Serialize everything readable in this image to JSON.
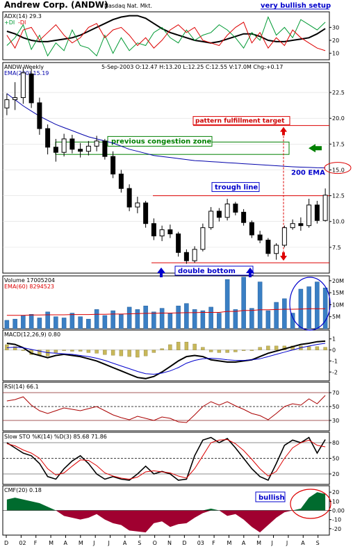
{
  "title": "Andrew Corp. (ANDW)",
  "exchange": "Nasdaq Nat. Mkt.",
  "setup_label": "very bullish setup",
  "colors": {
    "ink": "#000000",
    "grid": "#999999",
    "annotation_blue": "#0000cc",
    "annotation_green": "#008000",
    "annotation_red": "#cc0000",
    "ema": "#0000aa",
    "volume_bar": "#3a7fc4",
    "cmf_pos": "#006b2e",
    "cmf_neg": "#a00030",
    "red_line": "#dd0000",
    "green_line": "#009933"
  },
  "x_axis": {
    "labels": [
      "D",
      "02",
      "F",
      "M",
      "A",
      "M",
      "J",
      "J",
      "A",
      "S",
      "O",
      "N",
      "D",
      "03",
      "F",
      "M",
      "A",
      "M",
      "J",
      "J",
      "A",
      "S"
    ]
  },
  "chart_data": [
    {
      "panel": "ADX",
      "type": "line",
      "header": "ADX(14) 29.3",
      "legend": [
        {
          "text": "+DI",
          "color": "#009933"
        },
        {
          "text": "-DI",
          "color": "#dd0000"
        }
      ],
      "yticks": [
        "30",
        "20",
        "10"
      ],
      "ylim": [
        5,
        42
      ],
      "series": [
        {
          "name": "ADX",
          "color": "#000000",
          "values": [
            27,
            25,
            22,
            20,
            19,
            19,
            20,
            21,
            22,
            24,
            27,
            30,
            33,
            36,
            38,
            39,
            39,
            37,
            33,
            29,
            26,
            24,
            22,
            20,
            19,
            18,
            19,
            21,
            23,
            25,
            25,
            23,
            20,
            19,
            19,
            20,
            21,
            22,
            25,
            29
          ]
        },
        {
          "name": "+DI",
          "color": "#009933",
          "values": [
            16,
            22,
            32,
            13,
            24,
            8,
            18,
            12,
            28,
            16,
            14,
            8,
            24,
            10,
            22,
            12,
            18,
            16,
            26,
            30,
            22,
            18,
            28,
            20,
            24,
            26,
            32,
            28,
            22,
            14,
            26,
            20,
            38,
            24,
            30,
            22,
            36,
            32,
            28,
            34
          ]
        },
        {
          "name": "-DI",
          "color": "#dd0000",
          "values": [
            24,
            14,
            28,
            30,
            20,
            26,
            32,
            24,
            18,
            22,
            30,
            33,
            22,
            28,
            30,
            24,
            16,
            22,
            14,
            20,
            28,
            32,
            26,
            30,
            20,
            18,
            16,
            24,
            30,
            34,
            18,
            26,
            14,
            22,
            16,
            28,
            22,
            18,
            14,
            12
          ]
        }
      ]
    },
    {
      "panel": "Price",
      "type": "candlestick",
      "header": "ANDW Weekly",
      "ema_label": "EMA(200) 15.19",
      "quote": "5-Sep-2003 O:12.47 H:13.20 L:12.25 C:12.55 V:17.0M Chg:+0.17",
      "yticks": [
        "22.5",
        "20.0",
        "17.5",
        "15.0",
        "12.5",
        "10.0",
        "7.5"
      ],
      "ylim": [
        5.0,
        25.4
      ],
      "candles": [
        {
          "o": 21.0,
          "h": 22.4,
          "l": 20.3,
          "c": 21.8
        },
        {
          "o": 21.8,
          "h": 23.5,
          "l": 20.8,
          "c": 22.0
        },
        {
          "o": 22.0,
          "h": 25.0,
          "l": 21.4,
          "c": 24.4
        },
        {
          "o": 24.3,
          "h": 24.8,
          "l": 21.0,
          "c": 21.5
        },
        {
          "o": 21.5,
          "h": 22.0,
          "l": 18.4,
          "c": 19.0
        },
        {
          "o": 19.0,
          "h": 19.4,
          "l": 16.5,
          "c": 17.2
        },
        {
          "o": 17.2,
          "h": 18.0,
          "l": 15.8,
          "c": 16.7
        },
        {
          "o": 16.7,
          "h": 18.5,
          "l": 16.3,
          "c": 18.0
        },
        {
          "o": 18.0,
          "h": 18.4,
          "l": 16.6,
          "c": 17.0
        },
        {
          "o": 17.0,
          "h": 17.6,
          "l": 16.2,
          "c": 16.8
        },
        {
          "o": 16.8,
          "h": 17.8,
          "l": 16.4,
          "c": 17.3
        },
        {
          "o": 17.3,
          "h": 18.3,
          "l": 16.8,
          "c": 17.8
        },
        {
          "o": 17.8,
          "h": 18.0,
          "l": 16.0,
          "c": 16.3
        },
        {
          "o": 16.3,
          "h": 16.8,
          "l": 14.2,
          "c": 14.6
        },
        {
          "o": 14.6,
          "h": 15.0,
          "l": 12.8,
          "c": 13.2
        },
        {
          "o": 13.2,
          "h": 13.6,
          "l": 11.0,
          "c": 11.4
        },
        {
          "o": 11.4,
          "h": 12.4,
          "l": 10.8,
          "c": 11.8
        },
        {
          "o": 11.8,
          "h": 12.0,
          "l": 9.4,
          "c": 9.8
        },
        {
          "o": 9.8,
          "h": 10.3,
          "l": 8.2,
          "c": 8.6
        },
        {
          "o": 8.6,
          "h": 9.6,
          "l": 8.1,
          "c": 9.2
        },
        {
          "o": 9.2,
          "h": 9.7,
          "l": 8.4,
          "c": 8.8
        },
        {
          "o": 8.8,
          "h": 9.0,
          "l": 6.6,
          "c": 7.0
        },
        {
          "o": 7.0,
          "h": 7.3,
          "l": 5.9,
          "c": 6.2
        },
        {
          "o": 6.2,
          "h": 7.6,
          "l": 6.0,
          "c": 7.3
        },
        {
          "o": 7.3,
          "h": 9.8,
          "l": 7.1,
          "c": 9.4
        },
        {
          "o": 9.4,
          "h": 11.4,
          "l": 9.2,
          "c": 11.0
        },
        {
          "o": 11.0,
          "h": 11.3,
          "l": 10.0,
          "c": 10.4
        },
        {
          "o": 10.4,
          "h": 12.2,
          "l": 10.1,
          "c": 11.7
        },
        {
          "o": 11.7,
          "h": 11.9,
          "l": 10.6,
          "c": 10.9
        },
        {
          "o": 10.9,
          "h": 11.2,
          "l": 9.6,
          "c": 9.9
        },
        {
          "o": 9.9,
          "h": 10.1,
          "l": 8.4,
          "c": 8.7
        },
        {
          "o": 8.7,
          "h": 9.1,
          "l": 7.9,
          "c": 8.2
        },
        {
          "o": 8.2,
          "h": 8.4,
          "l": 6.6,
          "c": 6.9
        },
        {
          "o": 6.9,
          "h": 7.9,
          "l": 6.3,
          "c": 7.7
        },
        {
          "o": 7.7,
          "h": 9.6,
          "l": 7.5,
          "c": 9.4
        },
        {
          "o": 9.4,
          "h": 10.2,
          "l": 9.2,
          "c": 9.8
        },
        {
          "o": 9.8,
          "h": 10.4,
          "l": 9.1,
          "c": 9.6
        },
        {
          "o": 9.6,
          "h": 12.2,
          "l": 9.4,
          "c": 11.6
        },
        {
          "o": 11.6,
          "h": 12.0,
          "l": 9.8,
          "c": 10.1
        },
        {
          "o": 10.1,
          "h": 13.2,
          "l": 10.0,
          "c": 12.55
        }
      ],
      "ema": [
        22.4,
        21.8,
        21.2,
        20.7,
        20.2,
        19.8,
        19.4,
        19.1,
        18.8,
        18.5,
        18.2,
        18.0,
        17.8,
        17.6,
        17.3,
        17.0,
        16.8,
        16.6,
        16.4,
        16.3,
        16.2,
        16.1,
        16.0,
        15.9,
        15.85,
        15.8,
        15.75,
        15.7,
        15.65,
        15.6,
        15.55,
        15.5,
        15.45,
        15.4,
        15.35,
        15.3,
        15.27,
        15.24,
        15.21,
        15.19
      ],
      "annotations": {
        "target_label": "pattern fulfillment target",
        "target_level": 19.3,
        "congestion_label": "previous congestion zone",
        "congestion_range": [
          16.5,
          17.7
        ],
        "ema_label": "200 EMA",
        "ema_level": 15.19,
        "trough_label": "trough line",
        "trough_level": 12.5,
        "bottom_label": "double bottom",
        "bottom_level": 6.0
      }
    },
    {
      "panel": "Volume",
      "type": "bar",
      "header": "Volume 17005204",
      "ema_label": "EMA(60) 8294523",
      "yticks": [
        "20M",
        "15M",
        "10M",
        "5M"
      ],
      "ylim": [
        0,
        22
      ],
      "values": [
        3.5,
        4.0,
        5.5,
        6.0,
        4.5,
        7.0,
        5.0,
        4.5,
        6.5,
        5.0,
        4.0,
        8.0,
        5.5,
        7.5,
        6.0,
        9.0,
        8.0,
        9.5,
        7.0,
        8.5,
        6.5,
        9.5,
        10.5,
        8.0,
        7.5,
        9.0,
        6.5,
        20.5,
        8.0,
        21.5,
        8.5,
        19.5,
        7.5,
        11.0,
        12.5,
        6.5,
        16.5,
        17.5,
        19.5,
        17.0
      ],
      "ema": [
        5.6,
        5.6,
        5.6,
        5.7,
        5.7,
        5.8,
        5.8,
        5.8,
        5.9,
        5.9,
        5.9,
        6.0,
        6.0,
        6.1,
        6.1,
        6.2,
        6.3,
        6.4,
        6.4,
        6.5,
        6.5,
        6.6,
        6.7,
        6.7,
        6.8,
        6.8,
        6.8,
        7.2,
        7.2,
        7.6,
        7.6,
        7.9,
        7.9,
        8.0,
        8.1,
        8.1,
        8.2,
        8.3,
        8.3,
        8.3
      ]
    },
    {
      "panel": "MACD",
      "type": "line",
      "header": "MACD(12,26,9) 0.80",
      "yticks": [
        "1",
        "0",
        "-1",
        "-2"
      ],
      "ylim": [
        -2.8,
        1.8
      ],
      "series": [
        {
          "name": "MACD",
          "color": "#000000",
          "values": [
            0.6,
            0.5,
            0.2,
            -0.3,
            -0.5,
            -0.7,
            -0.5,
            -0.4,
            -0.5,
            -0.6,
            -0.8,
            -1.0,
            -1.3,
            -1.6,
            -1.9,
            -2.2,
            -2.5,
            -2.6,
            -2.4,
            -2.0,
            -1.5,
            -1.0,
            -0.6,
            -0.5,
            -0.6,
            -0.9,
            -1.0,
            -1.1,
            -1.1,
            -1.0,
            -0.9,
            -0.6,
            -0.3,
            -0.1,
            0.1,
            0.3,
            0.5,
            0.6,
            0.75,
            0.8
          ]
        },
        {
          "name": "Signal",
          "color": "#0000cc",
          "values": [
            0.2,
            0.25,
            0.2,
            0.05,
            -0.1,
            -0.25,
            -0.3,
            -0.35,
            -0.4,
            -0.5,
            -0.6,
            -0.75,
            -0.95,
            -1.2,
            -1.45,
            -1.7,
            -1.95,
            -2.15,
            -2.2,
            -2.1,
            -1.9,
            -1.6,
            -1.2,
            -0.95,
            -0.8,
            -0.75,
            -0.8,
            -0.9,
            -0.95,
            -0.95,
            -0.9,
            -0.8,
            -0.6,
            -0.4,
            -0.2,
            0.0,
            0.2,
            0.35,
            0.5,
            0.6
          ]
        }
      ],
      "histogram": [
        0.4,
        0.25,
        0.0,
        -0.35,
        -0.4,
        -0.45,
        -0.2,
        -0.05,
        -0.1,
        -0.1,
        -0.2,
        -0.25,
        -0.35,
        -0.4,
        -0.45,
        -0.5,
        -0.55,
        -0.45,
        -0.2,
        0.1,
        0.4,
        0.6,
        0.6,
        0.45,
        0.2,
        -0.15,
        -0.2,
        -0.2,
        -0.15,
        -0.05,
        0.0,
        0.2,
        0.3,
        0.3,
        0.3,
        0.3,
        0.3,
        0.25,
        0.25,
        0.2
      ]
    },
    {
      "panel": "RSI",
      "type": "line",
      "header": "RSI(14) 66.1",
      "yticks": [
        "70",
        "50",
        "30"
      ],
      "ylim": [
        15,
        85
      ],
      "levels": [
        70,
        50,
        30
      ],
      "series": [
        {
          "name": "RSI",
          "color": "#aa0000",
          "values": [
            58,
            60,
            64,
            52,
            44,
            40,
            44,
            48,
            46,
            44,
            47,
            50,
            44,
            38,
            34,
            31,
            36,
            33,
            30,
            35,
            33,
            28,
            27,
            38,
            50,
            57,
            52,
            57,
            51,
            46,
            40,
            37,
            31,
            40,
            50,
            54,
            52,
            61,
            54,
            66
          ]
        }
      ]
    },
    {
      "panel": "Slow STO",
      "type": "line",
      "header": "Slow STO %K(14) %D(3) 85.68 71.86",
      "yticks": [
        "80",
        "50",
        "20"
      ],
      "ylim": [
        0,
        100
      ],
      "levels": [
        80,
        50,
        20
      ],
      "series": [
        {
          "name": "%K",
          "color": "#000000",
          "values": [
            80,
            70,
            60,
            55,
            40,
            15,
            10,
            30,
            45,
            55,
            40,
            20,
            10,
            15,
            10,
            8,
            20,
            35,
            20,
            25,
            20,
            8,
            10,
            55,
            85,
            90,
            80,
            88,
            70,
            50,
            30,
            15,
            8,
            40,
            75,
            85,
            80,
            90,
            60,
            86
          ]
        },
        {
          "name": "%D",
          "color": "#dd0000",
          "values": [
            78,
            74,
            66,
            60,
            50,
            30,
            18,
            22,
            35,
            47,
            46,
            36,
            22,
            16,
            12,
            10,
            14,
            24,
            26,
            24,
            22,
            16,
            12,
            30,
            55,
            80,
            85,
            86,
            78,
            65,
            48,
            30,
            16,
            25,
            50,
            70,
            80,
            85,
            75,
            72
          ]
        }
      ]
    },
    {
      "panel": "CMF",
      "type": "area",
      "header": "CMF(20) 0.18",
      "bullish_label": "bullish",
      "yticks": [
        "20",
        "10",
        "0.00",
        "-10",
        "-20"
      ],
      "ylim": [
        -0.27,
        0.27
      ],
      "values": [
        0.12,
        0.14,
        0.12,
        0.1,
        0.08,
        0.04,
        0.0,
        -0.06,
        -0.08,
        -0.1,
        -0.08,
        -0.04,
        -0.1,
        -0.14,
        -0.16,
        -0.22,
        -0.23,
        -0.24,
        -0.14,
        -0.12,
        -0.18,
        -0.15,
        -0.14,
        -0.08,
        -0.03,
        0.02,
        0.0,
        -0.06,
        -0.04,
        -0.1,
        -0.18,
        -0.24,
        -0.16,
        -0.08,
        -0.02,
        0.0,
        0.02,
        0.14,
        0.2,
        0.18
      ]
    }
  ]
}
